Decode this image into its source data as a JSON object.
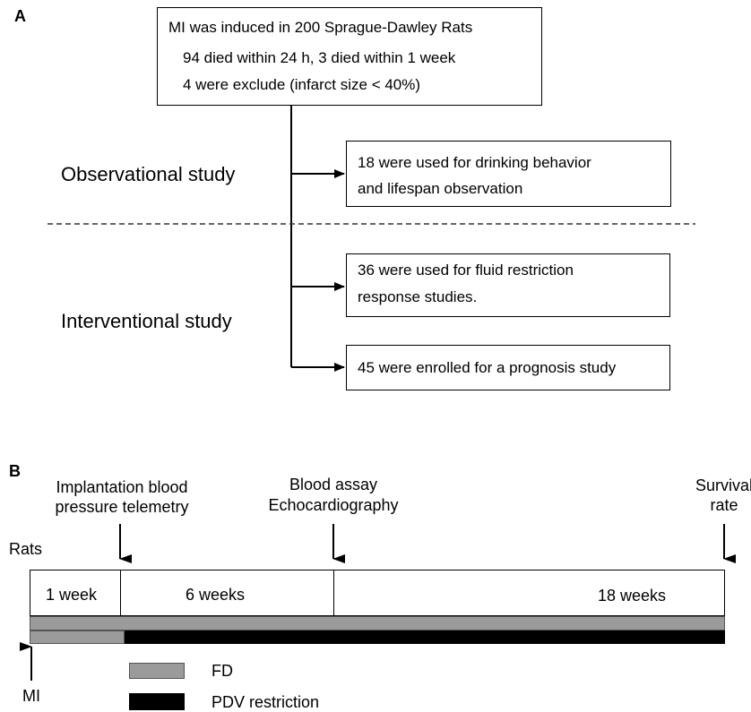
{
  "panel_a": {
    "label": "A",
    "top_box": {
      "line1": "MI was induced in 200 Sprague-Dawley Rats",
      "line2": "94 died within 24 h, 3 died within 1 week",
      "line3": "4 were exclude (infarct size < 40%)"
    },
    "observational_label": "Observational study",
    "interventional_label": "Interventional study",
    "box_drinking": {
      "line1": "18 were used for drinking behavior",
      "line2": "and lifespan observation"
    },
    "box_fluid": {
      "line1": "36 were used for fluid restriction",
      "line2": "response studies."
    },
    "box_prognosis": {
      "line1": "45 were enrolled for a prognosis study"
    }
  },
  "panel_b": {
    "label": "B",
    "event_implantation": {
      "line1": "Implantation blood",
      "line2": "pressure telemetry"
    },
    "event_blood": {
      "line1": "Blood assay",
      "line2": "Echocardiography"
    },
    "event_survival": {
      "line1": "Survival",
      "line2": "rate"
    },
    "rats_label": "Rats",
    "segments": [
      "1 week",
      "6 weeks",
      "18 weeks"
    ],
    "mi_label": "MI",
    "legend": [
      {
        "label": "FD",
        "color": "#9b9b9b"
      },
      {
        "label": "PDV restriction",
        "color": "#000000"
      }
    ]
  }
}
